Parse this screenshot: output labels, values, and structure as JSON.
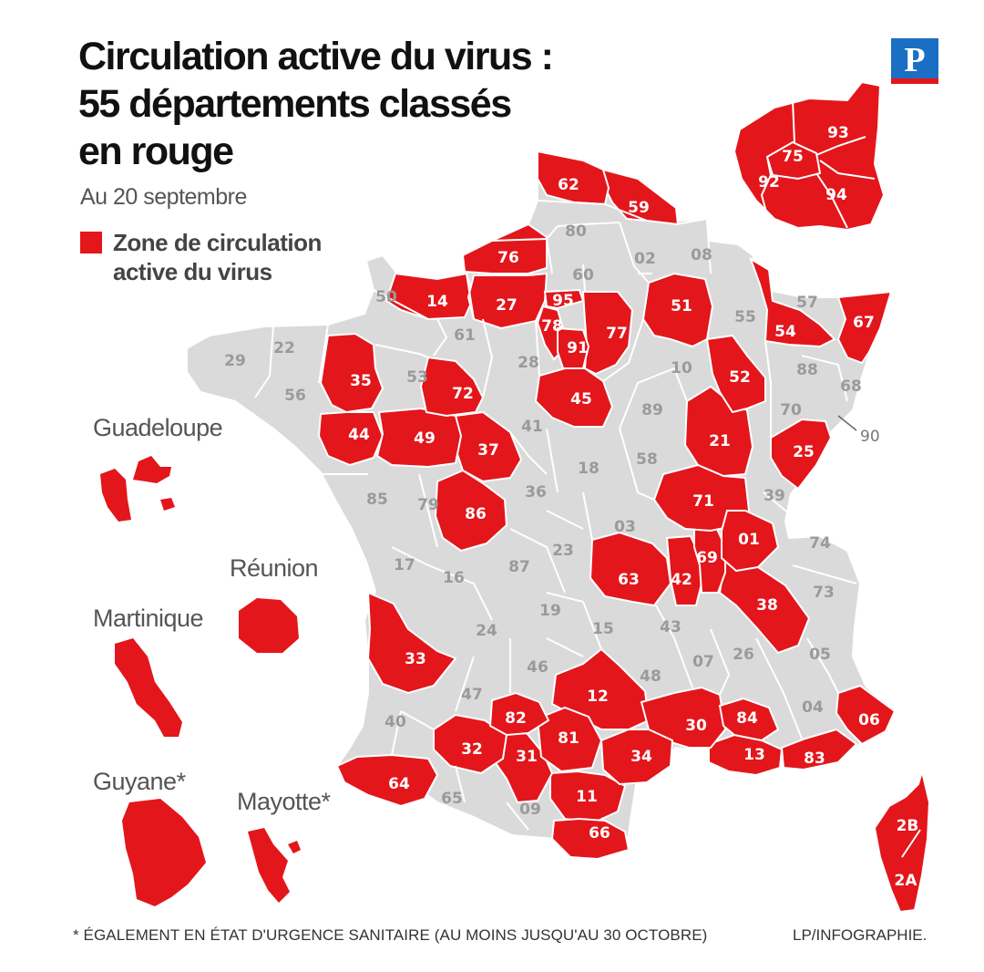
{
  "title": {
    "line1": "Circulation active du virus :",
    "line2": "55 départements classés",
    "line3": "en rouge"
  },
  "subtitle": "Au 20 septembre",
  "legend": {
    "label": "Zone de circulation active du virus",
    "color": "#e3161b"
  },
  "colors": {
    "red": "#e3161b",
    "grey": "#dadada",
    "border": "#ffffff"
  },
  "logo": {
    "letter": "P"
  },
  "overseas": {
    "guadeloupe": "Guadeloupe",
    "reunion": "Réunion",
    "martinique": "Martinique",
    "guyane": "Guyane*",
    "mayotte": "Mayotte*"
  },
  "callout_90": "90",
  "footnote": "* ÉGALEMENT EN ÉTAT D'URGENCE SANITAIRE (AU MOINS JUSQU'AU 30 OCTOBRE)",
  "credit": "LP/INFOGRAPHIE.",
  "departements": [
    {
      "code": "62",
      "red": true
    },
    {
      "code": "59",
      "red": true
    },
    {
      "code": "80",
      "red": false
    },
    {
      "code": "02",
      "red": false
    },
    {
      "code": "08",
      "red": false
    },
    {
      "code": "76",
      "red": true
    },
    {
      "code": "60",
      "red": false
    },
    {
      "code": "50",
      "red": false
    },
    {
      "code": "14",
      "red": true
    },
    {
      "code": "27",
      "red": true
    },
    {
      "code": "95",
      "red": true
    },
    {
      "code": "51",
      "red": true
    },
    {
      "code": "55",
      "red": false
    },
    {
      "code": "57",
      "red": false
    },
    {
      "code": "67",
      "red": true
    },
    {
      "code": "54",
      "red": true
    },
    {
      "code": "78",
      "red": true
    },
    {
      "code": "91",
      "red": true
    },
    {
      "code": "77",
      "red": true
    },
    {
      "code": "29",
      "red": false
    },
    {
      "code": "22",
      "red": false
    },
    {
      "code": "61",
      "red": false
    },
    {
      "code": "35",
      "red": true
    },
    {
      "code": "53",
      "red": false
    },
    {
      "code": "72",
      "red": true
    },
    {
      "code": "28",
      "red": false
    },
    {
      "code": "45",
      "red": true
    },
    {
      "code": "10",
      "red": false
    },
    {
      "code": "52",
      "red": true
    },
    {
      "code": "88",
      "red": false
    },
    {
      "code": "68",
      "red": false
    },
    {
      "code": "56",
      "red": false
    },
    {
      "code": "44",
      "red": true
    },
    {
      "code": "49",
      "red": true
    },
    {
      "code": "37",
      "red": true
    },
    {
      "code": "41",
      "red": false
    },
    {
      "code": "89",
      "red": false
    },
    {
      "code": "21",
      "red": true
    },
    {
      "code": "70",
      "red": false
    },
    {
      "code": "25",
      "red": true
    },
    {
      "code": "18",
      "red": false
    },
    {
      "code": "58",
      "red": false
    },
    {
      "code": "85",
      "red": false
    },
    {
      "code": "79",
      "red": false
    },
    {
      "code": "86",
      "red": true
    },
    {
      "code": "36",
      "red": false
    },
    {
      "code": "71",
      "red": true
    },
    {
      "code": "39",
      "red": false
    },
    {
      "code": "03",
      "red": false
    },
    {
      "code": "01",
      "red": true
    },
    {
      "code": "74",
      "red": false
    },
    {
      "code": "17",
      "red": false
    },
    {
      "code": "16",
      "red": false
    },
    {
      "code": "87",
      "red": false
    },
    {
      "code": "23",
      "red": false
    },
    {
      "code": "63",
      "red": true
    },
    {
      "code": "42",
      "red": true
    },
    {
      "code": "69",
      "red": true
    },
    {
      "code": "73",
      "red": false
    },
    {
      "code": "38",
      "red": true
    },
    {
      "code": "19",
      "red": false
    },
    {
      "code": "24",
      "red": false
    },
    {
      "code": "15",
      "red": false
    },
    {
      "code": "43",
      "red": false
    },
    {
      "code": "33",
      "red": true
    },
    {
      "code": "46",
      "red": false
    },
    {
      "code": "07",
      "red": false
    },
    {
      "code": "26",
      "red": false
    },
    {
      "code": "05",
      "red": false
    },
    {
      "code": "48",
      "red": false
    },
    {
      "code": "47",
      "red": false
    },
    {
      "code": "12",
      "red": true
    },
    {
      "code": "04",
      "red": false
    },
    {
      "code": "06",
      "red": true
    },
    {
      "code": "40",
      "red": false
    },
    {
      "code": "82",
      "red": true
    },
    {
      "code": "30",
      "red": true
    },
    {
      "code": "84",
      "red": true
    },
    {
      "code": "32",
      "red": true
    },
    {
      "code": "81",
      "red": true
    },
    {
      "code": "31",
      "red": true
    },
    {
      "code": "34",
      "red": true
    },
    {
      "code": "13",
      "red": true
    },
    {
      "code": "83",
      "red": true
    },
    {
      "code": "64",
      "red": true
    },
    {
      "code": "65",
      "red": false
    },
    {
      "code": "11",
      "red": true
    },
    {
      "code": "09",
      "red": false
    },
    {
      "code": "66",
      "red": true
    },
    {
      "code": "2B",
      "red": true
    },
    {
      "code": "2A",
      "red": true
    },
    {
      "code": "93",
      "red": true
    },
    {
      "code": "75",
      "red": true
    },
    {
      "code": "92",
      "red": true
    },
    {
      "code": "94",
      "red": true
    }
  ]
}
